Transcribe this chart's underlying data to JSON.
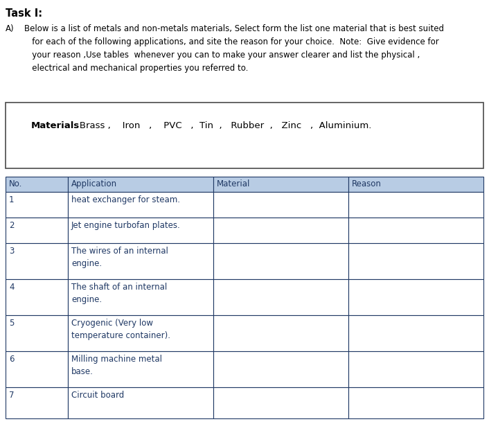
{
  "title": "Task I:",
  "paragraph_label": "A)",
  "paragraph_text": "Below is a list of metals and non-metals materials, Select form the list one material that is best suited\n   for each of the following applications, and site the reason for your choice.  Note:  Give evidence for\n   your reason ,Use tables  whenever you can to make your answer clearer and list the physical ,\n   electrical and mechanical properties you referred to.",
  "materials_bold": "Materials",
  "materials_colon_rest": " : Brass ,    Iron   ,    PVC   ,  Tin  ,   Rubber  ,   Zinc   ,  Aluminium.",
  "table_headers": [
    "No.",
    "Application",
    "Material",
    "Reason"
  ],
  "table_rows": [
    [
      "1",
      "heat exchanger for steam.",
      "",
      ""
    ],
    [
      "2",
      "Jet engine turbofan plates.",
      "",
      ""
    ],
    [
      "3",
      "The wires of an internal\nengine.",
      "",
      ""
    ],
    [
      "4",
      "The shaft of an internal\nengine.",
      "",
      ""
    ],
    [
      "5",
      "Cryogenic (Very low\ntemperature container).",
      "",
      ""
    ],
    [
      "6",
      "Milling machine metal\nbase.",
      "",
      ""
    ],
    [
      "7",
      "Circuit board",
      "",
      ""
    ]
  ],
  "header_bg_color": "#b8cce4",
  "text_color": "#1f3864",
  "border_color": "#4f6228",
  "bg_color": "#ffffff",
  "font_size_title": 10.5,
  "font_size_body": 8.5,
  "fig_width": 7.06,
  "fig_height": 6.38,
  "dpi": 100
}
